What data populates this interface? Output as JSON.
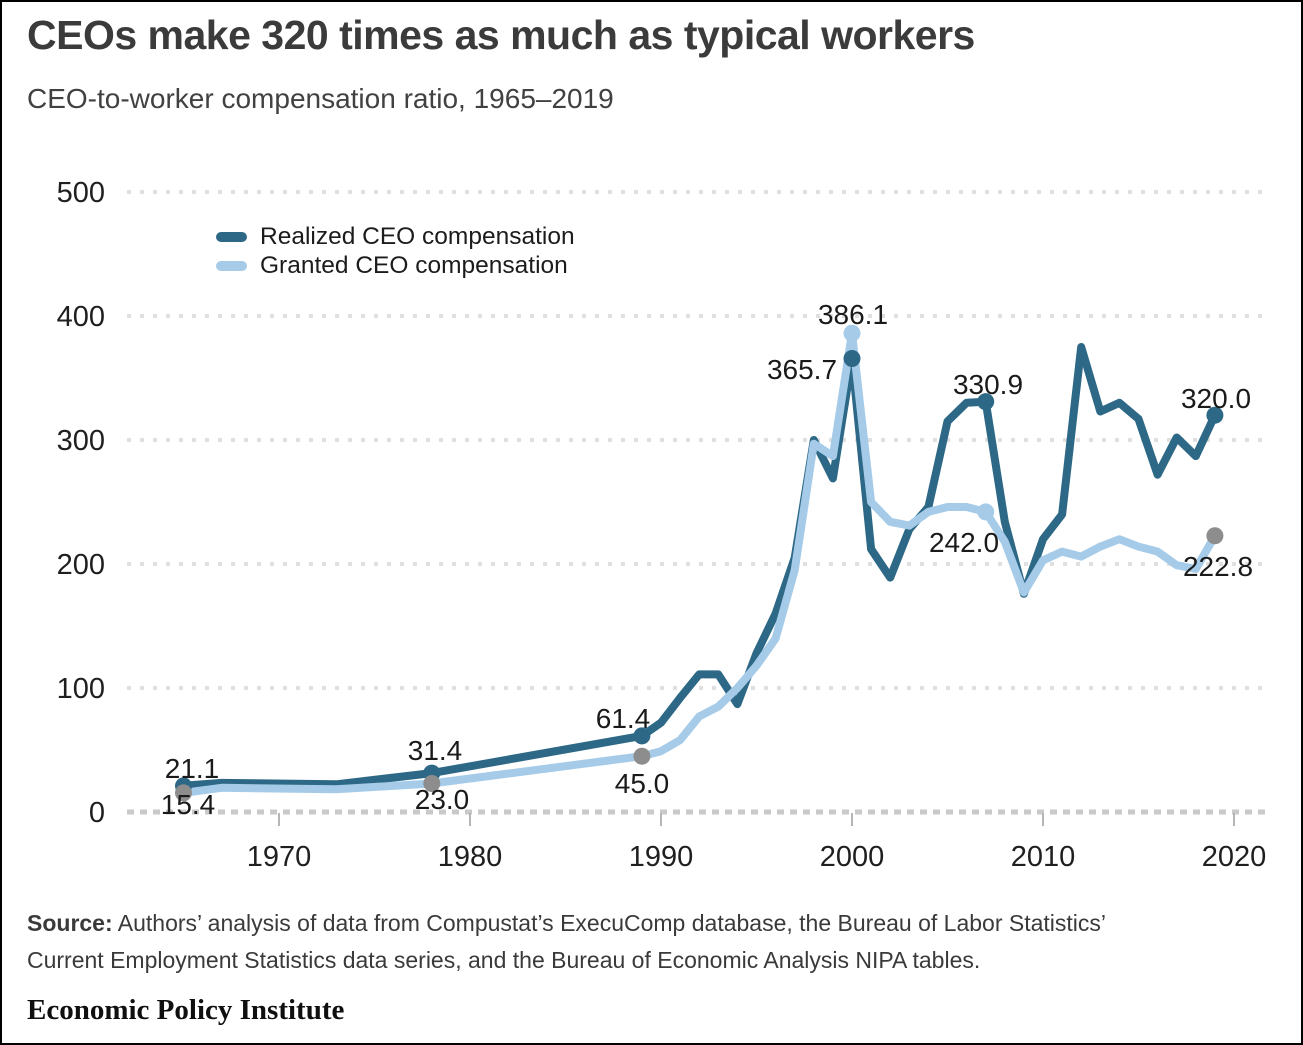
{
  "title": "CEOs make 320 times as much as typical workers",
  "subtitle": "CEO-to-worker compensation ratio, 1965–2019",
  "legend": {
    "realized_label": "Realized CEO compensation",
    "granted_label": "Granted CEO compensation"
  },
  "colors": {
    "realized": "#2d6886",
    "granted": "#a5cbe9",
    "gray_marker": "#8d8d8d",
    "gridline": "#e0e0e0",
    "baseline": "#c9c9c9",
    "tick": "#b5b5b5",
    "axis_text": "#1f1f1f",
    "label_text": "#1a1a1a"
  },
  "chart_data": {
    "type": "line",
    "title": "CEO-to-worker compensation ratio, 1965–2019",
    "xlabel": "",
    "ylabel": "",
    "xlim": [
      1965,
      2020
    ],
    "ylim": [
      0,
      500
    ],
    "x_ticks": [
      1970,
      1980,
      1990,
      2000,
      2010,
      2020
    ],
    "y_ticks": [
      0,
      100,
      200,
      300,
      400,
      500
    ],
    "grid": "horizontal-dotted",
    "legend_position": "top-left-inside",
    "x": [
      1965,
      1967,
      1973,
      1978,
      1989,
      1990,
      1991,
      1992,
      1993,
      1994,
      1995,
      1996,
      1997,
      1998,
      1999,
      2000,
      2001,
      2002,
      2003,
      2004,
      2005,
      2006,
      2007,
      2008,
      2009,
      2010,
      2011,
      2012,
      2013,
      2014,
      2015,
      2016,
      2017,
      2018,
      2019
    ],
    "series": [
      {
        "name": "Realized CEO compensation",
        "key": "realized",
        "color": "#2d6886",
        "values": [
          21.1,
          23.5,
          22.3,
          31.4,
          61.4,
          72,
          92,
          111,
          111,
          87,
          128,
          160,
          205,
          300,
          269,
          365.7,
          212,
          189,
          228,
          246,
          315,
          330,
          330.9,
          234,
          176,
          220,
          240,
          375,
          323,
          330,
          317,
          272,
          302,
          287,
          320.0
        ]
      },
      {
        "name": "Granted CEO compensation",
        "key": "granted",
        "color": "#a5cbe9",
        "values": [
          15.4,
          19.5,
          18.3,
          23.0,
          45.0,
          49,
          58,
          77,
          85,
          100,
          118,
          140,
          195,
          297,
          287,
          386.1,
          250,
          234,
          231,
          242,
          246,
          246,
          242.0,
          218,
          177,
          203,
          210,
          206,
          214,
          220,
          214,
          210,
          199,
          196,
          222.8
        ]
      }
    ],
    "labeled_points": [
      {
        "series": "realized",
        "year": 1965,
        "value": 21.1,
        "label": "21.1",
        "marker_color": "#2d6886"
      },
      {
        "series": "granted",
        "year": 1965,
        "value": 15.4,
        "label": "15.4",
        "marker_color": "#8d8d8d"
      },
      {
        "series": "realized",
        "year": 1978,
        "value": 31.4,
        "label": "31.4",
        "marker_color": "#2d6886"
      },
      {
        "series": "granted",
        "year": 1978,
        "value": 23.0,
        "label": "23.0",
        "marker_color": "#8d8d8d"
      },
      {
        "series": "realized",
        "year": 1989,
        "value": 61.4,
        "label": "61.4",
        "marker_color": "#2d6886"
      },
      {
        "series": "granted",
        "year": 1989,
        "value": 45.0,
        "label": "45.0",
        "marker_color": "#8d8d8d"
      },
      {
        "series": "realized",
        "year": 2000,
        "value": 365.7,
        "label": "365.7",
        "marker_color": "#2d6886"
      },
      {
        "series": "granted",
        "year": 2000,
        "value": 386.1,
        "label": "386.1",
        "marker_color": "#a5cbe9"
      },
      {
        "series": "realized",
        "year": 2007,
        "value": 330.9,
        "label": "330.9",
        "marker_color": "#2d6886"
      },
      {
        "series": "granted",
        "year": 2007,
        "value": 242.0,
        "label": "242.0",
        "marker_color": "#a5cbe9"
      },
      {
        "series": "realized",
        "year": 2019,
        "value": 320.0,
        "label": "320.0",
        "marker_color": "#2d6886"
      },
      {
        "series": "granted",
        "year": 2019,
        "value": 222.8,
        "label": "222.8",
        "marker_color": "#8d8d8d"
      }
    ]
  },
  "source": {
    "prefix": "Source:",
    "line1": " Authors’ analysis of data from Compustat’s ExecuComp database, the Bureau of Labor Statistics’",
    "line2": "Current Employment Statistics data series, and the Bureau of Economic Analysis NIPA tables."
  },
  "footer_logo": "Economic Policy Institute"
}
